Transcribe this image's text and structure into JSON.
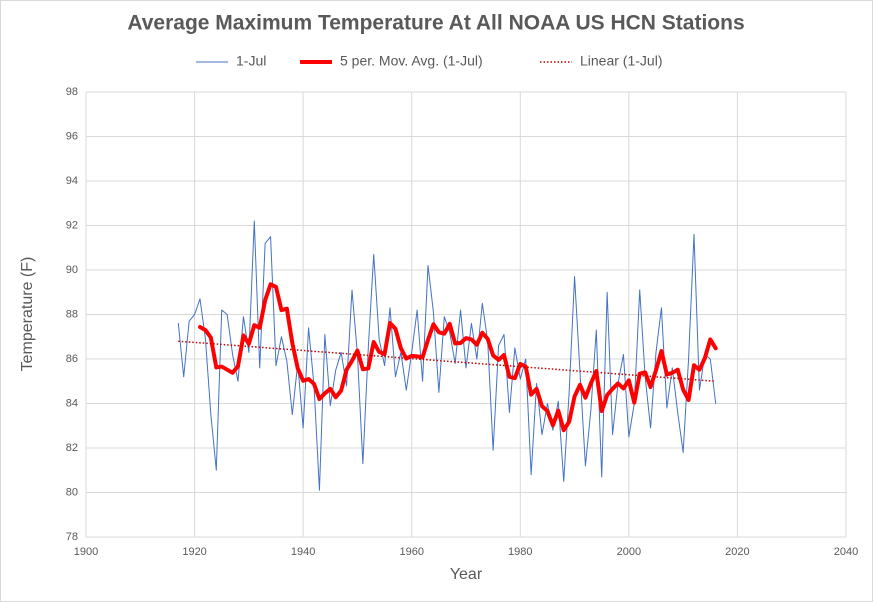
{
  "chart_data": {
    "type": "line",
    "title": "Average Maximum Temperature At All NOAA US HCN Stations",
    "x_label": "Year",
    "y_label": "Temperature (F)",
    "x": [
      1917,
      1918,
      1919,
      1920,
      1921,
      1922,
      1923,
      1924,
      1925,
      1926,
      1927,
      1928,
      1929,
      1930,
      1931,
      1932,
      1933,
      1934,
      1935,
      1936,
      1937,
      1938,
      1939,
      1940,
      1941,
      1942,
      1943,
      1944,
      1945,
      1946,
      1947,
      1948,
      1949,
      1950,
      1951,
      1952,
      1953,
      1954,
      1955,
      1956,
      1957,
      1958,
      1959,
      1960,
      1961,
      1962,
      1963,
      1964,
      1965,
      1966,
      1967,
      1968,
      1969,
      1970,
      1971,
      1972,
      1973,
      1974,
      1975,
      1976,
      1977,
      1978,
      1979,
      1980,
      1981,
      1982,
      1983,
      1984,
      1985,
      1986,
      1987,
      1988,
      1989,
      1990,
      1991,
      1992,
      1993,
      1994,
      1995,
      1996,
      1997,
      1998,
      1999,
      2000,
      2001,
      2002,
      2003,
      2004,
      2005,
      2006,
      2007,
      2008,
      2009,
      2010,
      2011,
      2012,
      2013,
      2014,
      2015,
      2016
    ],
    "series": [
      {
        "name": "1-Jul",
        "color": "#4472c4",
        "width": 1,
        "values": [
          87.6,
          85.2,
          87.7,
          88.0,
          88.7,
          86.9,
          83.5,
          81.0,
          88.2,
          88.0,
          86.2,
          85.0,
          87.9,
          86.3,
          92.2,
          85.6,
          91.2,
          91.5,
          85.7,
          87.0,
          85.9,
          83.5,
          85.8,
          82.9,
          87.4,
          84.8,
          80.1,
          87.1,
          83.9,
          85.5,
          86.3,
          84.8,
          89.1,
          86.2,
          81.3,
          86.5,
          90.7,
          86.9,
          85.7,
          88.3,
          85.2,
          86.3,
          84.6,
          86.3,
          88.2,
          85.0,
          90.2,
          88.1,
          84.5,
          87.9,
          87.2,
          85.8,
          88.2,
          85.6,
          87.6,
          86.0,
          88.5,
          86.8,
          81.9,
          86.6,
          87.1,
          83.6,
          86.5,
          85.1,
          86.0,
          80.8,
          84.9,
          82.6,
          84.0,
          82.8,
          84.1,
          80.5,
          84.5,
          89.7,
          85.4,
          81.2,
          83.7,
          87.3,
          80.7,
          89.0,
          82.6,
          84.9,
          86.2,
          82.5,
          84.0,
          89.1,
          85.2,
          82.9,
          86.3,
          88.3,
          83.8,
          85.6,
          83.6,
          81.8,
          86.0,
          91.6,
          84.6,
          86.2,
          86.0,
          84.0
        ]
      },
      {
        "name": "5 per. Mov. Avg. (1-Jul)",
        "color": "#ff0000",
        "width": 4,
        "values": [
          null,
          null,
          null,
          null,
          87.44,
          87.3,
          86.96,
          85.62,
          85.66,
          85.52,
          85.38,
          85.68,
          87.06,
          86.68,
          87.52,
          87.4,
          88.64,
          89.36,
          89.24,
          88.2,
          88.26,
          86.72,
          85.58,
          85.02,
          85.1,
          84.88,
          84.2,
          84.46,
          84.66,
          84.28,
          84.58,
          85.52,
          85.92,
          86.38,
          85.54,
          85.58,
          86.76,
          86.32,
          86.22,
          87.62,
          87.36,
          86.48,
          86.02,
          86.14,
          86.12,
          86.08,
          86.86,
          87.56,
          87.2,
          87.14,
          87.58,
          86.7,
          86.72,
          86.94,
          86.88,
          86.64,
          87.18,
          86.9,
          86.16,
          85.96,
          86.18,
          85.2,
          85.14,
          85.78,
          85.66,
          84.4,
          84.66,
          83.88,
          83.66,
          83.02,
          83.68,
          82.8,
          83.18,
          84.32,
          84.84,
          84.26,
          84.9,
          85.46,
          83.66,
          84.38,
          84.66,
          84.9,
          84.68,
          85.04,
          84.04,
          85.34,
          85.4,
          84.74,
          85.5,
          86.36,
          85.3,
          85.38,
          85.52,
          84.62,
          84.16,
          85.72,
          85.52,
          86.04,
          86.88,
          86.48
        ]
      },
      {
        "name": "Linear (1-Jul)",
        "color": "#c00000",
        "width": 1.5,
        "dash": "dotted",
        "x": [
          1917,
          2016
        ],
        "values": [
          86.8,
          85.0
        ]
      }
    ],
    "xlim": [
      1900,
      2040
    ],
    "xticks": [
      1900,
      1920,
      1940,
      1960,
      1980,
      2000,
      2020,
      2040
    ],
    "ylim": [
      78,
      98
    ],
    "yticks": [
      78,
      80,
      82,
      84,
      86,
      88,
      90,
      92,
      94,
      96,
      98
    ],
    "grid": true,
    "legend": "top"
  }
}
